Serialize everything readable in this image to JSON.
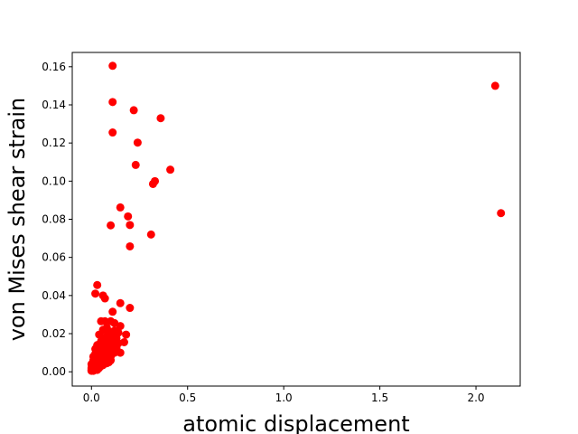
{
  "chart_data": {
    "type": "scatter",
    "title": "",
    "xlabel": "atomic displacement",
    "ylabel": "von Mises shear strain",
    "xlim": [
      -0.1,
      2.23
    ],
    "ylim": [
      -0.0075,
      0.1675
    ],
    "xticks": [
      0.0,
      0.5,
      1.0,
      1.5,
      2.0
    ],
    "xtick_labels": [
      "0.0",
      "0.5",
      "1.0",
      "1.5",
      "2.0"
    ],
    "yticks": [
      0.0,
      0.02,
      0.04,
      0.06,
      0.08,
      0.1,
      0.12,
      0.14,
      0.16
    ],
    "ytick_labels": [
      "0.00",
      "0.02",
      "0.04",
      "0.06",
      "0.08",
      "0.10",
      "0.12",
      "0.14",
      "0.16"
    ],
    "grid": false,
    "legend": "none",
    "marker_color": "#ff0000",
    "series": [
      {
        "x": [
          0.11,
          0.11,
          0.22,
          0.36,
          0.11,
          0.24,
          0.23,
          0.41,
          0.33,
          0.32,
          0.15,
          0.19,
          0.2,
          0.1,
          0.2,
          0.31,
          2.1,
          2.13,
          0.03,
          0.02,
          0.06,
          0.07,
          0.15,
          0.2,
          0.11,
          0.05,
          0.07,
          0.1,
          0.12,
          0.15,
          0.18,
          0.08,
          0.12,
          0.14,
          0.17,
          0.06,
          0.09,
          0.11,
          0.13,
          0.04,
          0.07,
          0.1,
          0.14,
          0.05,
          0.08,
          0.11,
          0.13,
          0.03,
          0.06,
          0.09,
          0.12,
          0.02,
          0.04,
          0.06,
          0.08,
          0.1,
          0.02,
          0.04,
          0.06,
          0.08,
          0.01,
          0.03,
          0.05,
          0.07,
          0.09,
          0.01,
          0.02,
          0.04,
          0.05,
          0.0,
          0.01,
          0.02,
          0.03,
          0.05,
          0.0,
          0.01,
          0.02,
          0.04,
          0.0,
          0.01,
          0.03,
          0.06,
          0.08,
          0.1,
          0.02,
          0.07,
          0.09,
          0.12,
          0.03,
          0.05,
          0.0,
          0.01,
          0.02,
          0.15,
          0.13,
          0.1,
          0.08,
          0.06,
          0.04,
          0.09,
          0.11,
          0.07,
          0.05,
          0.03
        ],
        "y": [
          0.1605,
          0.1415,
          0.1372,
          0.133,
          0.1255,
          0.1202,
          0.1085,
          0.106,
          0.1,
          0.0985,
          0.0862,
          0.0815,
          0.077,
          0.0768,
          0.0658,
          0.072,
          0.15,
          0.0832,
          0.0455,
          0.041,
          0.04,
          0.0385,
          0.036,
          0.0335,
          0.0315,
          0.0265,
          0.0265,
          0.0265,
          0.0255,
          0.024,
          0.0195,
          0.023,
          0.0215,
          0.0205,
          0.0155,
          0.022,
          0.02,
          0.019,
          0.0175,
          0.0195,
          0.018,
          0.0165,
          0.015,
          0.016,
          0.015,
          0.014,
          0.012,
          0.014,
          0.013,
          0.0115,
          0.01,
          0.012,
          0.011,
          0.01,
          0.009,
          0.008,
          0.0095,
          0.0085,
          0.0075,
          0.0065,
          0.008,
          0.007,
          0.006,
          0.0055,
          0.005,
          0.006,
          0.005,
          0.0045,
          0.004,
          0.004,
          0.0035,
          0.003,
          0.0025,
          0.003,
          0.002,
          0.0015,
          0.0015,
          0.002,
          0.0005,
          0.0005,
          0.001,
          0.0035,
          0.0045,
          0.006,
          0.007,
          0.012,
          0.014,
          0.017,
          0.01,
          0.0085,
          0.001,
          0.0025,
          0.0045,
          0.01,
          0.013,
          0.012,
          0.011,
          0.009,
          0.006,
          0.019,
          0.021,
          0.018,
          0.014,
          0.008
        ]
      }
    ]
  }
}
